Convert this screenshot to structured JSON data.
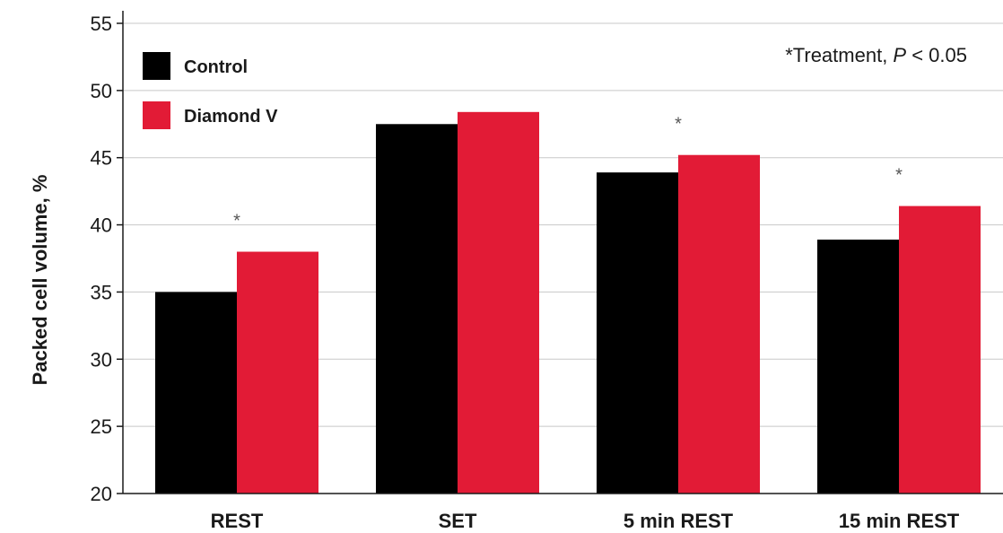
{
  "chart_data": {
    "type": "bar",
    "title": "",
    "xlabel": "",
    "ylabel": "Packed cell volume, %",
    "ylim": [
      20,
      55
    ],
    "yticks": [
      20,
      25,
      30,
      35,
      40,
      45,
      50,
      55
    ],
    "grid": true,
    "legend_position": "top-left",
    "categories": [
      "REST",
      "SET",
      "5 min REST",
      "15 min REST"
    ],
    "series": [
      {
        "name": "Control",
        "color": "#000000",
        "values": [
          35.0,
          47.5,
          43.9,
          38.9
        ]
      },
      {
        "name": "Diamond V",
        "color": "#e21b36",
        "values": [
          38.0,
          48.4,
          45.2,
          41.4
        ]
      }
    ],
    "significance": [
      "*",
      "",
      "*",
      "*"
    ],
    "annotation": {
      "prefix": "*Treatment, ",
      "italic": "P",
      "suffix": " < 0.05"
    }
  }
}
